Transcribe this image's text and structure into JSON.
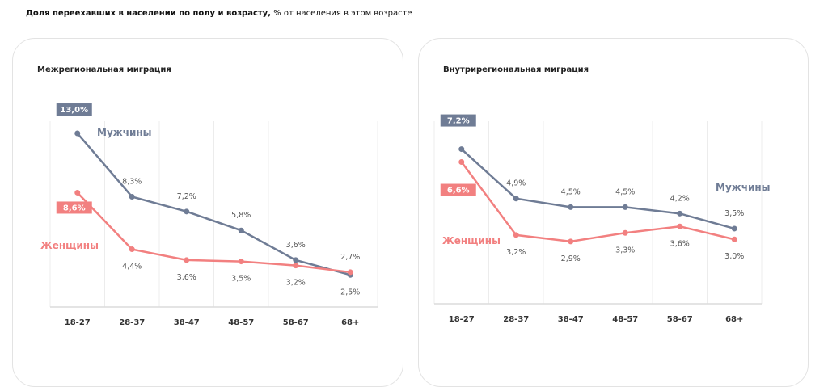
{
  "title_bold": "Доля переехавших в населении по полу и возрасту,",
  "title_rest": " % от населения в этом возрасте",
  "colors": {
    "male": "#6f7c95",
    "female": "#f28080",
    "grid": "#ececec",
    "axis": "#dcdcdc"
  },
  "chart_data": [
    {
      "type": "line",
      "title": "Межрегиональная миграция",
      "categories": [
        "18-27",
        "28-37",
        "38-47",
        "48-57",
        "58-67",
        "68+"
      ],
      "series": [
        {
          "name": "Мужчины",
          "values": [
            13.0,
            8.3,
            7.2,
            5.8,
            3.6,
            2.5
          ],
          "labels": [
            "13,0%",
            "8,3%",
            "7,2%",
            "5,8%",
            "3,6%",
            "2,5%"
          ]
        },
        {
          "name": "Женщины",
          "values": [
            8.6,
            4.4,
            3.6,
            3.5,
            3.2,
            2.7
          ],
          "labels": [
            "8,6%",
            "4,4%",
            "3,6%",
            "3,5%",
            "3,2%",
            "2,7%"
          ]
        }
      ],
      "ylim": [
        0,
        13.9
      ],
      "grid": "vertical"
    },
    {
      "type": "line",
      "title": "Внутрирегиональная миграция",
      "categories": [
        "18-27",
        "28-37",
        "38-47",
        "48-57",
        "58-67",
        "68+"
      ],
      "series": [
        {
          "name": "Мужчины",
          "values": [
            7.2,
            4.9,
            4.5,
            4.5,
            4.2,
            3.5
          ],
          "labels": [
            "7,2%",
            "4,9%",
            "4,5%",
            "4,5%",
            "4,2%",
            "3,5%"
          ]
        },
        {
          "name": "Женщины",
          "values": [
            6.6,
            3.2,
            2.9,
            3.3,
            3.6,
            3.0
          ],
          "labels": [
            "6,6%",
            "3,2%",
            "2,9%",
            "3,3%",
            "3,6%",
            "3,0%"
          ]
        }
      ],
      "ylim": [
        0,
        8.5
      ],
      "grid": "vertical"
    }
  ]
}
